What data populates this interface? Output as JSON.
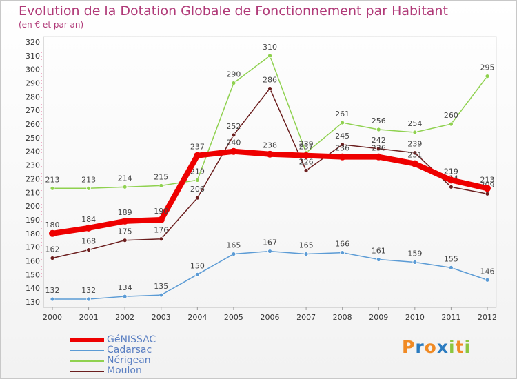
{
  "title": "Evolution de la Dotation Globale de Fonctionnement par Habitant",
  "subtitle": "(en € et par an)",
  "logo": {
    "text": "Proxiti",
    "letters": [
      "P",
      "r",
      "o",
      "x",
      "i",
      "t",
      "i"
    ],
    "colors": [
      "#f08a24",
      "#2a7bc0",
      "#f08a24",
      "#2a7bc0",
      "#8cc63f",
      "#f08a24",
      "#8cc63f"
    ]
  },
  "chart_data": {
    "type": "line",
    "title": "Evolution de la Dotation Globale de Fonctionnement par Habitant",
    "subtitle": "(en € et par an)",
    "xlabel": "",
    "ylabel": "",
    "x": [
      "2000",
      "2001",
      "2002",
      "2003",
      "2004",
      "2005",
      "2006",
      "2007",
      "2008",
      "2009",
      "2010",
      "2011",
      "2012"
    ],
    "ylim": [
      130,
      320
    ],
    "yticks": [
      130,
      140,
      150,
      160,
      170,
      180,
      190,
      200,
      210,
      220,
      230,
      240,
      250,
      260,
      270,
      280,
      290,
      300,
      310,
      320
    ],
    "grid": false,
    "legend_position": "bottom-left",
    "series": [
      {
        "name": "GéNISSAC",
        "color": "#ee0000",
        "highlight": true,
        "values": [
          180,
          184,
          189,
          190,
          237,
          240,
          238,
          237,
          236,
          236,
          231,
          219,
          213
        ]
      },
      {
        "name": "Cadarsac",
        "color": "#5b9bd5",
        "highlight": false,
        "values": [
          132,
          132,
          134,
          135,
          150,
          165,
          167,
          165,
          166,
          161,
          159,
          155,
          146
        ]
      },
      {
        "name": "Nérigean",
        "color": "#8fd14f",
        "highlight": false,
        "values": [
          213,
          213,
          214,
          215,
          219,
          290,
          310,
          239,
          261,
          256,
          254,
          260,
          295
        ]
      },
      {
        "name": "Moulon",
        "color": "#6b1e1e",
        "highlight": false,
        "values": [
          162,
          168,
          175,
          176,
          206,
          252,
          286,
          226,
          245,
          242,
          239,
          214,
          209
        ]
      }
    ]
  }
}
